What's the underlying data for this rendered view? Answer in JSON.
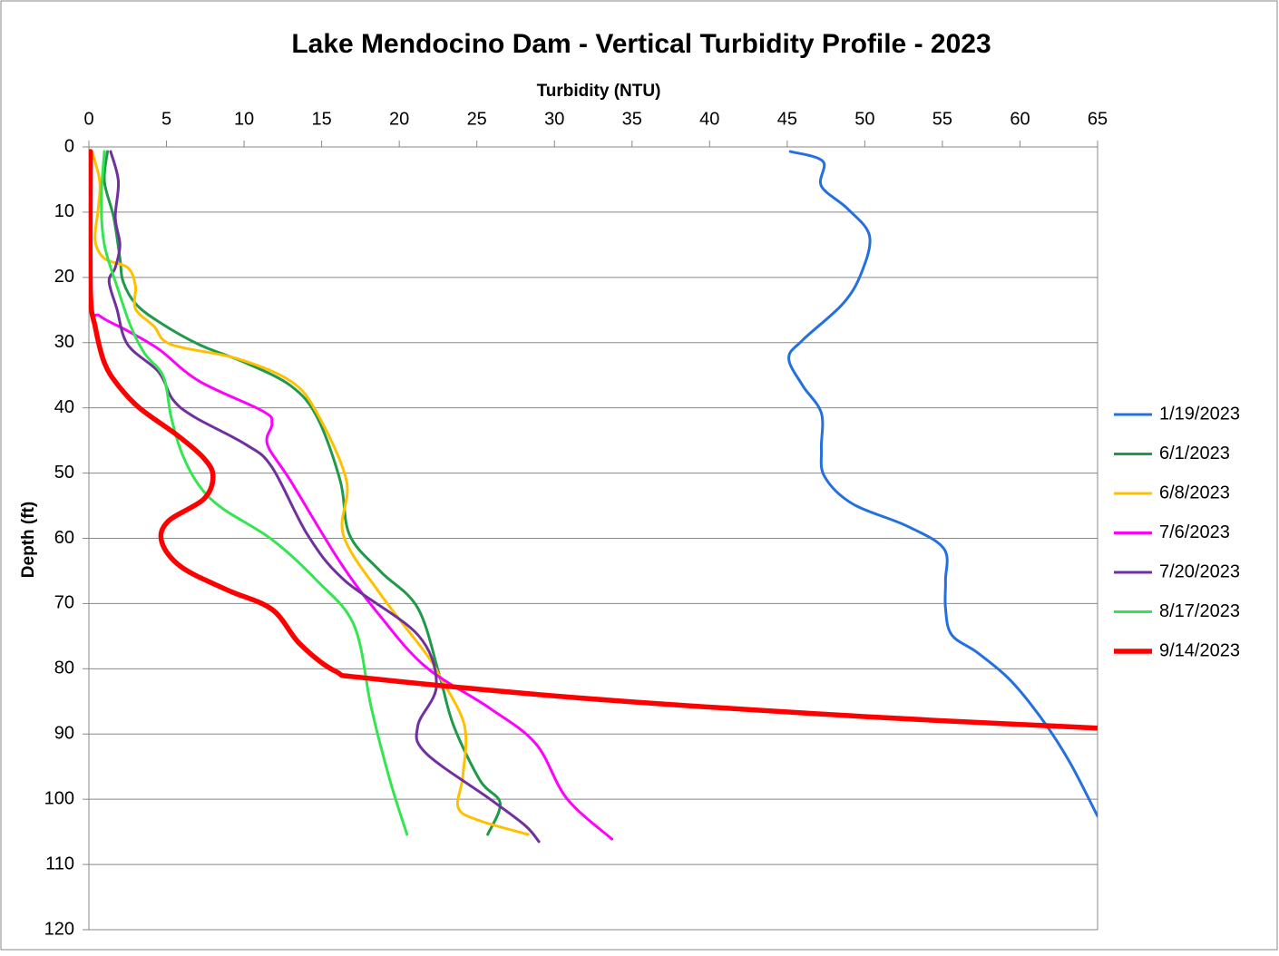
{
  "chart_data": {
    "type": "line",
    "title": "Lake Mendocino Dam - Vertical Turbidity Profile - 2023",
    "x_label": "Turbidity (NTU)",
    "y_label": "Depth (ft)",
    "xlim": [
      0,
      65
    ],
    "xticks": [
      0,
      5,
      10,
      15,
      20,
      25,
      30,
      35,
      40,
      45,
      50,
      55,
      60,
      65
    ],
    "ylim": [
      0,
      120
    ],
    "yticks": [
      0,
      10,
      20,
      30,
      40,
      50,
      60,
      70,
      80,
      90,
      100,
      110,
      120
    ],
    "y_inverted": true,
    "x_axis_position": "top",
    "grid": "y",
    "legend": "right",
    "series": [
      {
        "name": "1/19/2023",
        "color": "#2370e0",
        "line_width": 3,
        "x": [
          45.2,
          47.3,
          47.2,
          48.9,
          50.3,
          49.8,
          48.6,
          46,
          45.1,
          46,
          47.2,
          47.2,
          47.4,
          49.2,
          52.7,
          55.1,
          55.2,
          55.2,
          55.6,
          57.3,
          59.4,
          61.5,
          63.2,
          65
        ],
        "values": [
          0.7,
          2.2,
          6,
          9.5,
          13.6,
          19.2,
          24,
          29.6,
          32.4,
          36.6,
          40.8,
          46.3,
          50.5,
          54.7,
          58.1,
          61.6,
          66.5,
          70.7,
          74.8,
          77.6,
          81.8,
          88,
          94.3,
          102.6
        ]
      },
      {
        "name": "6/1/2023",
        "color": "#1f9a48",
        "line_width": 3,
        "x": [
          1.2,
          1.0,
          1.6,
          2.0,
          2.2,
          3.0,
          4.5,
          7.1,
          10.1,
          13,
          14.7,
          16.2,
          16.8,
          18.8,
          21.2,
          22.6,
          23.5,
          25.2,
          26.5,
          25.7
        ],
        "values": [
          0.7,
          5.3,
          10.8,
          17.1,
          20.6,
          24,
          26.8,
          30.3,
          33.1,
          36.6,
          41.4,
          51.2,
          59.5,
          65.1,
          70.7,
          81.1,
          88.7,
          97.1,
          100.6,
          105.4
        ]
      },
      {
        "name": "6/8/2023",
        "color": "#ffc000",
        "line_width": 3,
        "x": [
          0.2,
          0.7,
          0.6,
          0.4,
          1,
          2.5,
          3,
          3,
          4.2,
          5.3,
          9.5,
          13,
          14.7,
          16.6,
          16.4,
          18.8,
          21.7,
          22.6,
          24.2,
          24.1,
          23.8,
          25.2,
          28.3
        ],
        "values": [
          0.7,
          5.3,
          9.5,
          14.3,
          17.1,
          18.5,
          21.3,
          24.8,
          27.5,
          30.3,
          32.4,
          35.9,
          40.8,
          51.2,
          59.5,
          68.6,
          77.6,
          81.1,
          88.7,
          96.4,
          101.3,
          103.3,
          105.4
        ]
      },
      {
        "name": "7/6/2023",
        "color": "#ff00ff",
        "line_width": 3,
        "x": [
          0.1,
          0.1,
          0.7,
          2.5,
          4.5,
          7.1,
          11.2,
          11.8,
          11.5,
          13,
          16.2,
          18.8,
          21.7,
          25.8,
          28.8,
          30.8,
          33.7
        ],
        "values": [
          0.7,
          23.4,
          25.9,
          28.2,
          31,
          35.9,
          40.5,
          42.4,
          45.6,
          51.2,
          63.7,
          72,
          79.7,
          86,
          91.5,
          99.9,
          106.1
        ]
      },
      {
        "name": "7/20/2023",
        "color": "#7030a0",
        "line_width": 3,
        "x": [
          1.4,
          1.9,
          1.7,
          2,
          1.7,
          1.3,
          1.8,
          2.5,
          4.5,
          5.4,
          6.8,
          10.1,
          11.8,
          14.1,
          16.5,
          21.2,
          22.4,
          21.2,
          21.7,
          25.8,
          28.1,
          29.0
        ],
        "values": [
          0.7,
          5.3,
          10.8,
          15,
          18.5,
          20.6,
          24.8,
          30.3,
          34.5,
          38.7,
          41.4,
          45.6,
          49.1,
          59.5,
          66.5,
          74.8,
          82.5,
          88.7,
          92.9,
          99.9,
          104,
          106.5
        ]
      },
      {
        "name": "8/17/2023",
        "color": "#33e650",
        "line_width": 3,
        "x": [
          1,
          0.8,
          1,
          1.9,
          2.7,
          3.6,
          4.8,
          5.3,
          6,
          7.1,
          8.6,
          11.8,
          14.7,
          17.1,
          18.2,
          19.4,
          20.5
        ],
        "values": [
          0.7,
          8,
          15,
          22,
          27.5,
          31.7,
          35.2,
          41.4,
          47,
          51.9,
          55.4,
          60.2,
          66.5,
          73.4,
          86,
          97.1,
          105.4
        ]
      },
      {
        "name": "9/14/2023",
        "color": "#ff0000",
        "line_width": 5.5,
        "x": [
          0.1,
          0.1,
          0.4,
          1,
          1.9,
          3.3,
          5.7,
          7.4,
          8,
          7.4,
          5.1,
          4.7,
          5.96,
          8.9,
          11.8,
          13.6,
          15.9,
          18.2,
          32.3,
          49.8,
          65
        ],
        "values": [
          0.7,
          22,
          27.5,
          33.1,
          36.6,
          40.1,
          44.2,
          47.7,
          50.5,
          54,
          57.4,
          60.6,
          64.4,
          67.9,
          70.9,
          76.2,
          80.4,
          81.5,
          84.6,
          87.3,
          89.1
        ]
      }
    ]
  }
}
